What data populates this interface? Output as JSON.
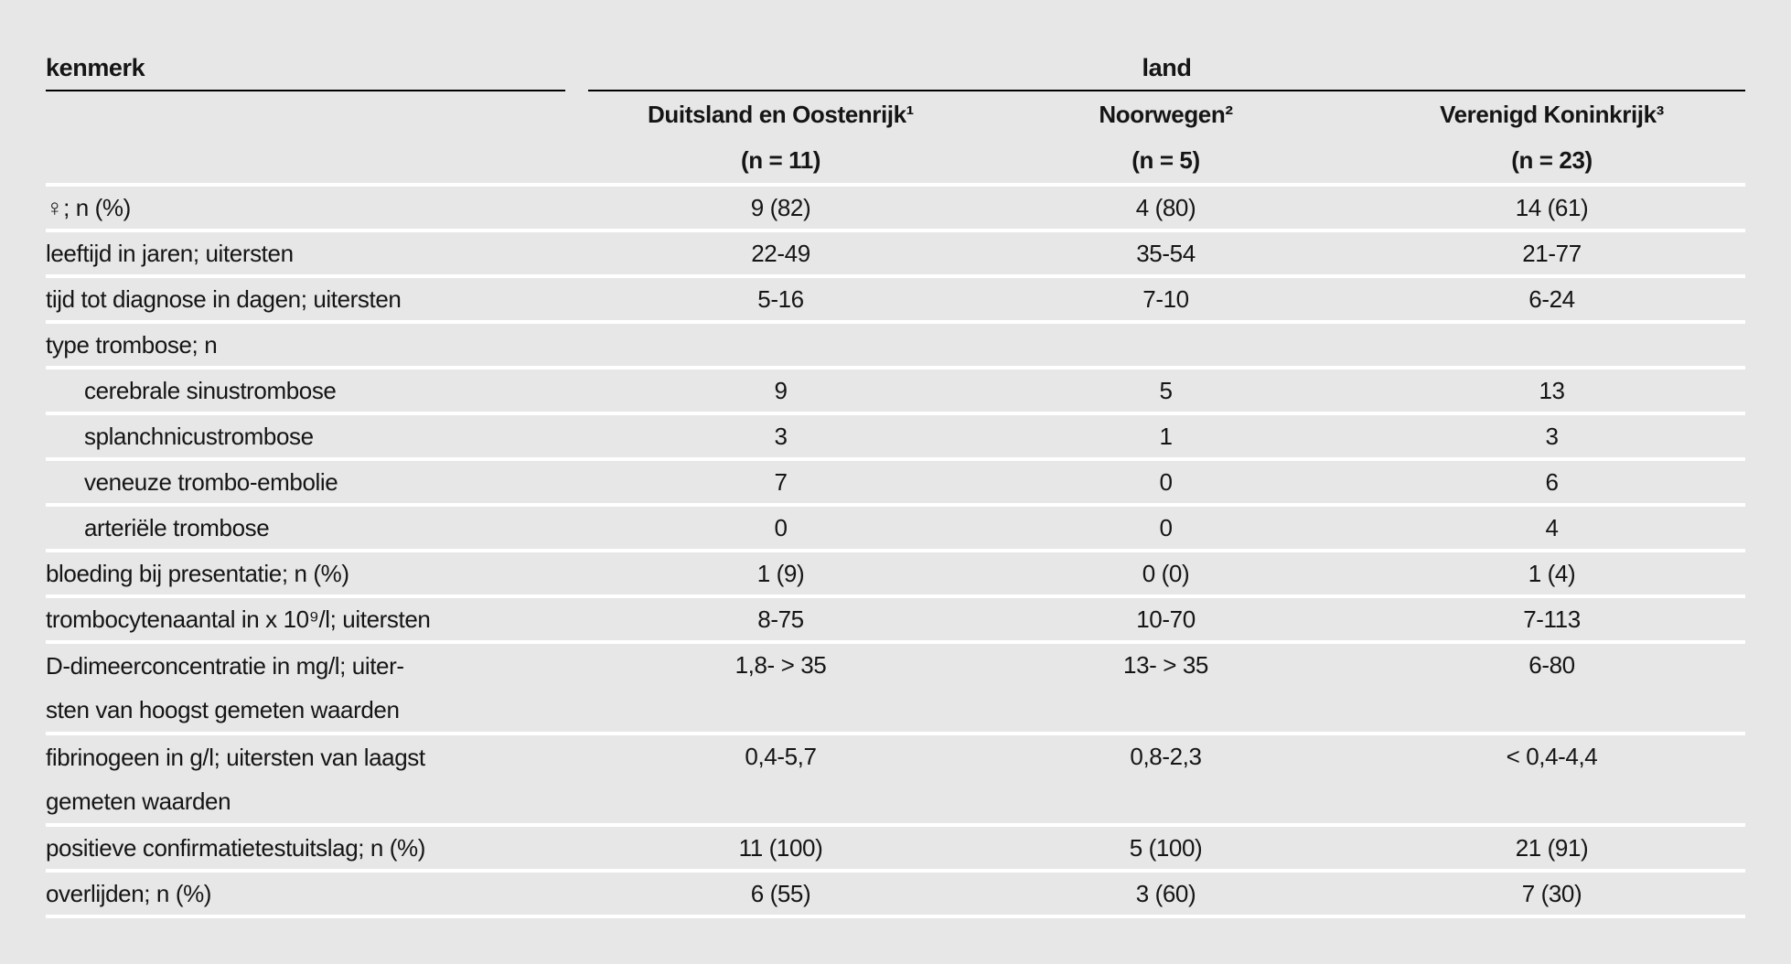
{
  "colors": {
    "background": "#e7e7e7",
    "header_rule": "#000000",
    "row_separator": "#ffffff",
    "text": "#151515"
  },
  "chart_data": {
    "type": "table",
    "corner_label": "kenmerk",
    "group_label": "land",
    "columns": [
      {
        "name": "Duitsland en Oostenrijk¹",
        "n": "(n = 11)"
      },
      {
        "name": "Noorwegen²",
        "n": "(n = 5)"
      },
      {
        "name": "Verenigd Koninkrijk³",
        "n": "(n = 23)"
      }
    ],
    "rows": [
      {
        "label": "♀; n (%)",
        "values": [
          "9 (82)",
          "4 (80)",
          "14 (61)"
        ]
      },
      {
        "label": "leeftijd in jaren; uitersten",
        "values": [
          "22-49",
          "35-54",
          "21-77"
        ]
      },
      {
        "label": "tijd tot diagnose in dagen; uitersten",
        "values": [
          "5-16",
          "7-10",
          "6-24"
        ]
      },
      {
        "label": "type trombose; n",
        "values": [
          "",
          "",
          ""
        ]
      },
      {
        "label": "cerebrale sinustrombose",
        "values": [
          "9",
          "5",
          "13"
        ]
      },
      {
        "label": "splanchnicustrombose",
        "values": [
          "3",
          "1",
          "3"
        ]
      },
      {
        "label": "veneuze trombo-embolie",
        "values": [
          "7",
          "0",
          "6"
        ]
      },
      {
        "label": "arteriële trombose",
        "values": [
          "0",
          "0",
          "4"
        ]
      },
      {
        "label": "bloeding bij presentatie; n (%)",
        "values": [
          "1 (9)",
          "0 (0)",
          "1 (4)"
        ]
      },
      {
        "label": "trombocytenaantal in x 10⁹/l; uitersten",
        "values": [
          "8-75",
          "10-70",
          "7-113"
        ]
      },
      {
        "label": "D-dimeerconcentratie in mg/l; uiter-\nsten van hoogst gemeten waarden",
        "values": [
          "1,8- > 35",
          "13- > 35",
          "6-80"
        ]
      },
      {
        "label": "fibrinogeen in g/l; uitersten van laagst\ngemeten waarden",
        "values": [
          "0,4-5,7",
          "0,8-2,3",
          "< 0,4-4,4"
        ]
      },
      {
        "label": "positieve confirmatietestuitslag; n (%)",
        "values": [
          "11 (100)",
          "5 (100)",
          "21 (91)"
        ]
      },
      {
        "label": "overlijden; n (%)",
        "values": [
          "6 (55)",
          "3 (60)",
          "7 (30)"
        ]
      }
    ]
  }
}
